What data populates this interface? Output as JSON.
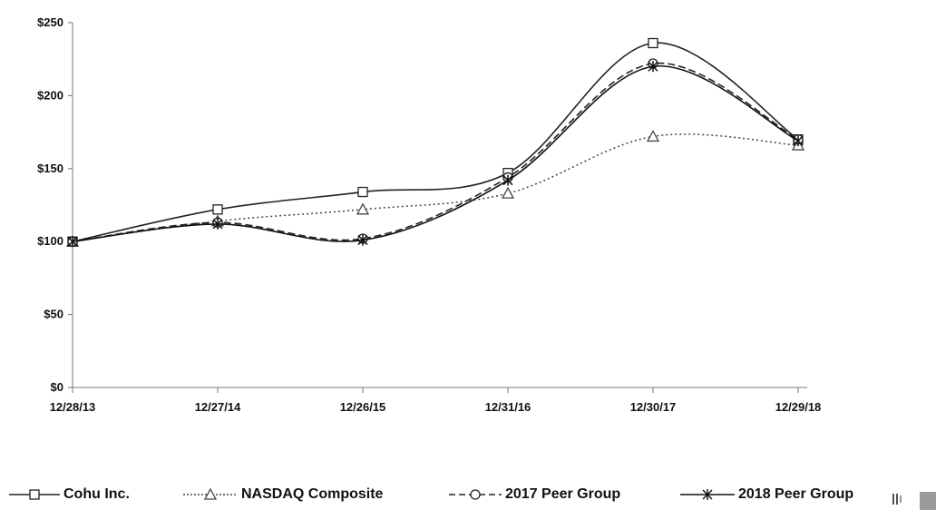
{
  "chart_data": {
    "type": "line",
    "categories": [
      "12/28/13",
      "12/27/14",
      "12/26/15",
      "12/31/16",
      "12/30/17",
      "12/29/18"
    ],
    "ylim": [
      0,
      250
    ],
    "yticks": [
      0,
      50,
      100,
      150,
      200,
      250
    ],
    "ytick_labels": [
      "$0",
      "$50",
      "$100",
      "$150",
      "$200",
      "$250"
    ],
    "grid": false,
    "legend_position": "bottom",
    "series": [
      {
        "name": "Cohu Inc.",
        "marker": "square",
        "line": "solid",
        "color": "#222222",
        "values": [
          100,
          122,
          134,
          147,
          236,
          170
        ]
      },
      {
        "name": "NASDAQ Composite",
        "marker": "triangle",
        "line": "dotted",
        "color": "#444444",
        "values": [
          100,
          114,
          122,
          133,
          172,
          166
        ]
      },
      {
        "name": "2017 Peer Group",
        "marker": "circle",
        "line": "dashed",
        "color": "#222222",
        "values": [
          100,
          113,
          102,
          144,
          222,
          170
        ]
      },
      {
        "name": "2018 Peer Group",
        "marker": "star",
        "line": "solid",
        "color": "#111111",
        "values": [
          100,
          112,
          101,
          142,
          220,
          169
        ]
      }
    ]
  }
}
